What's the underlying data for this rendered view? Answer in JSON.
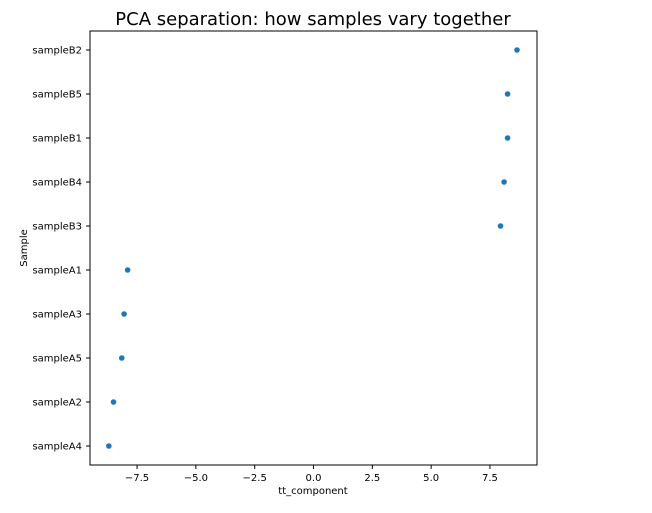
{
  "chart_data": {
    "type": "scatter",
    "title": "PCA separation: how samples vary together",
    "xlabel": "tt_component",
    "ylabel": "Sample",
    "xlim": [
      -9.5,
      9.5
    ],
    "x_ticks": [
      -7.5,
      -5.0,
      -2.5,
      0.0,
      2.5,
      5.0,
      7.5
    ],
    "x_tick_labels": [
      "−7.5",
      "−5.0",
      "−2.5",
      "0.0",
      "2.5",
      "5.0",
      "7.5"
    ],
    "categories": [
      "sampleB2",
      "sampleB5",
      "sampleB1",
      "sampleB4",
      "sampleB3",
      "sampleA1",
      "sampleA3",
      "sampleA5",
      "sampleA2",
      "sampleA4"
    ],
    "values": [
      8.65,
      8.25,
      8.25,
      8.1,
      7.95,
      -7.9,
      -8.05,
      -8.15,
      -8.5,
      -8.7
    ],
    "marker_color": "#1f77b4",
    "grid": false,
    "legend": "none"
  }
}
